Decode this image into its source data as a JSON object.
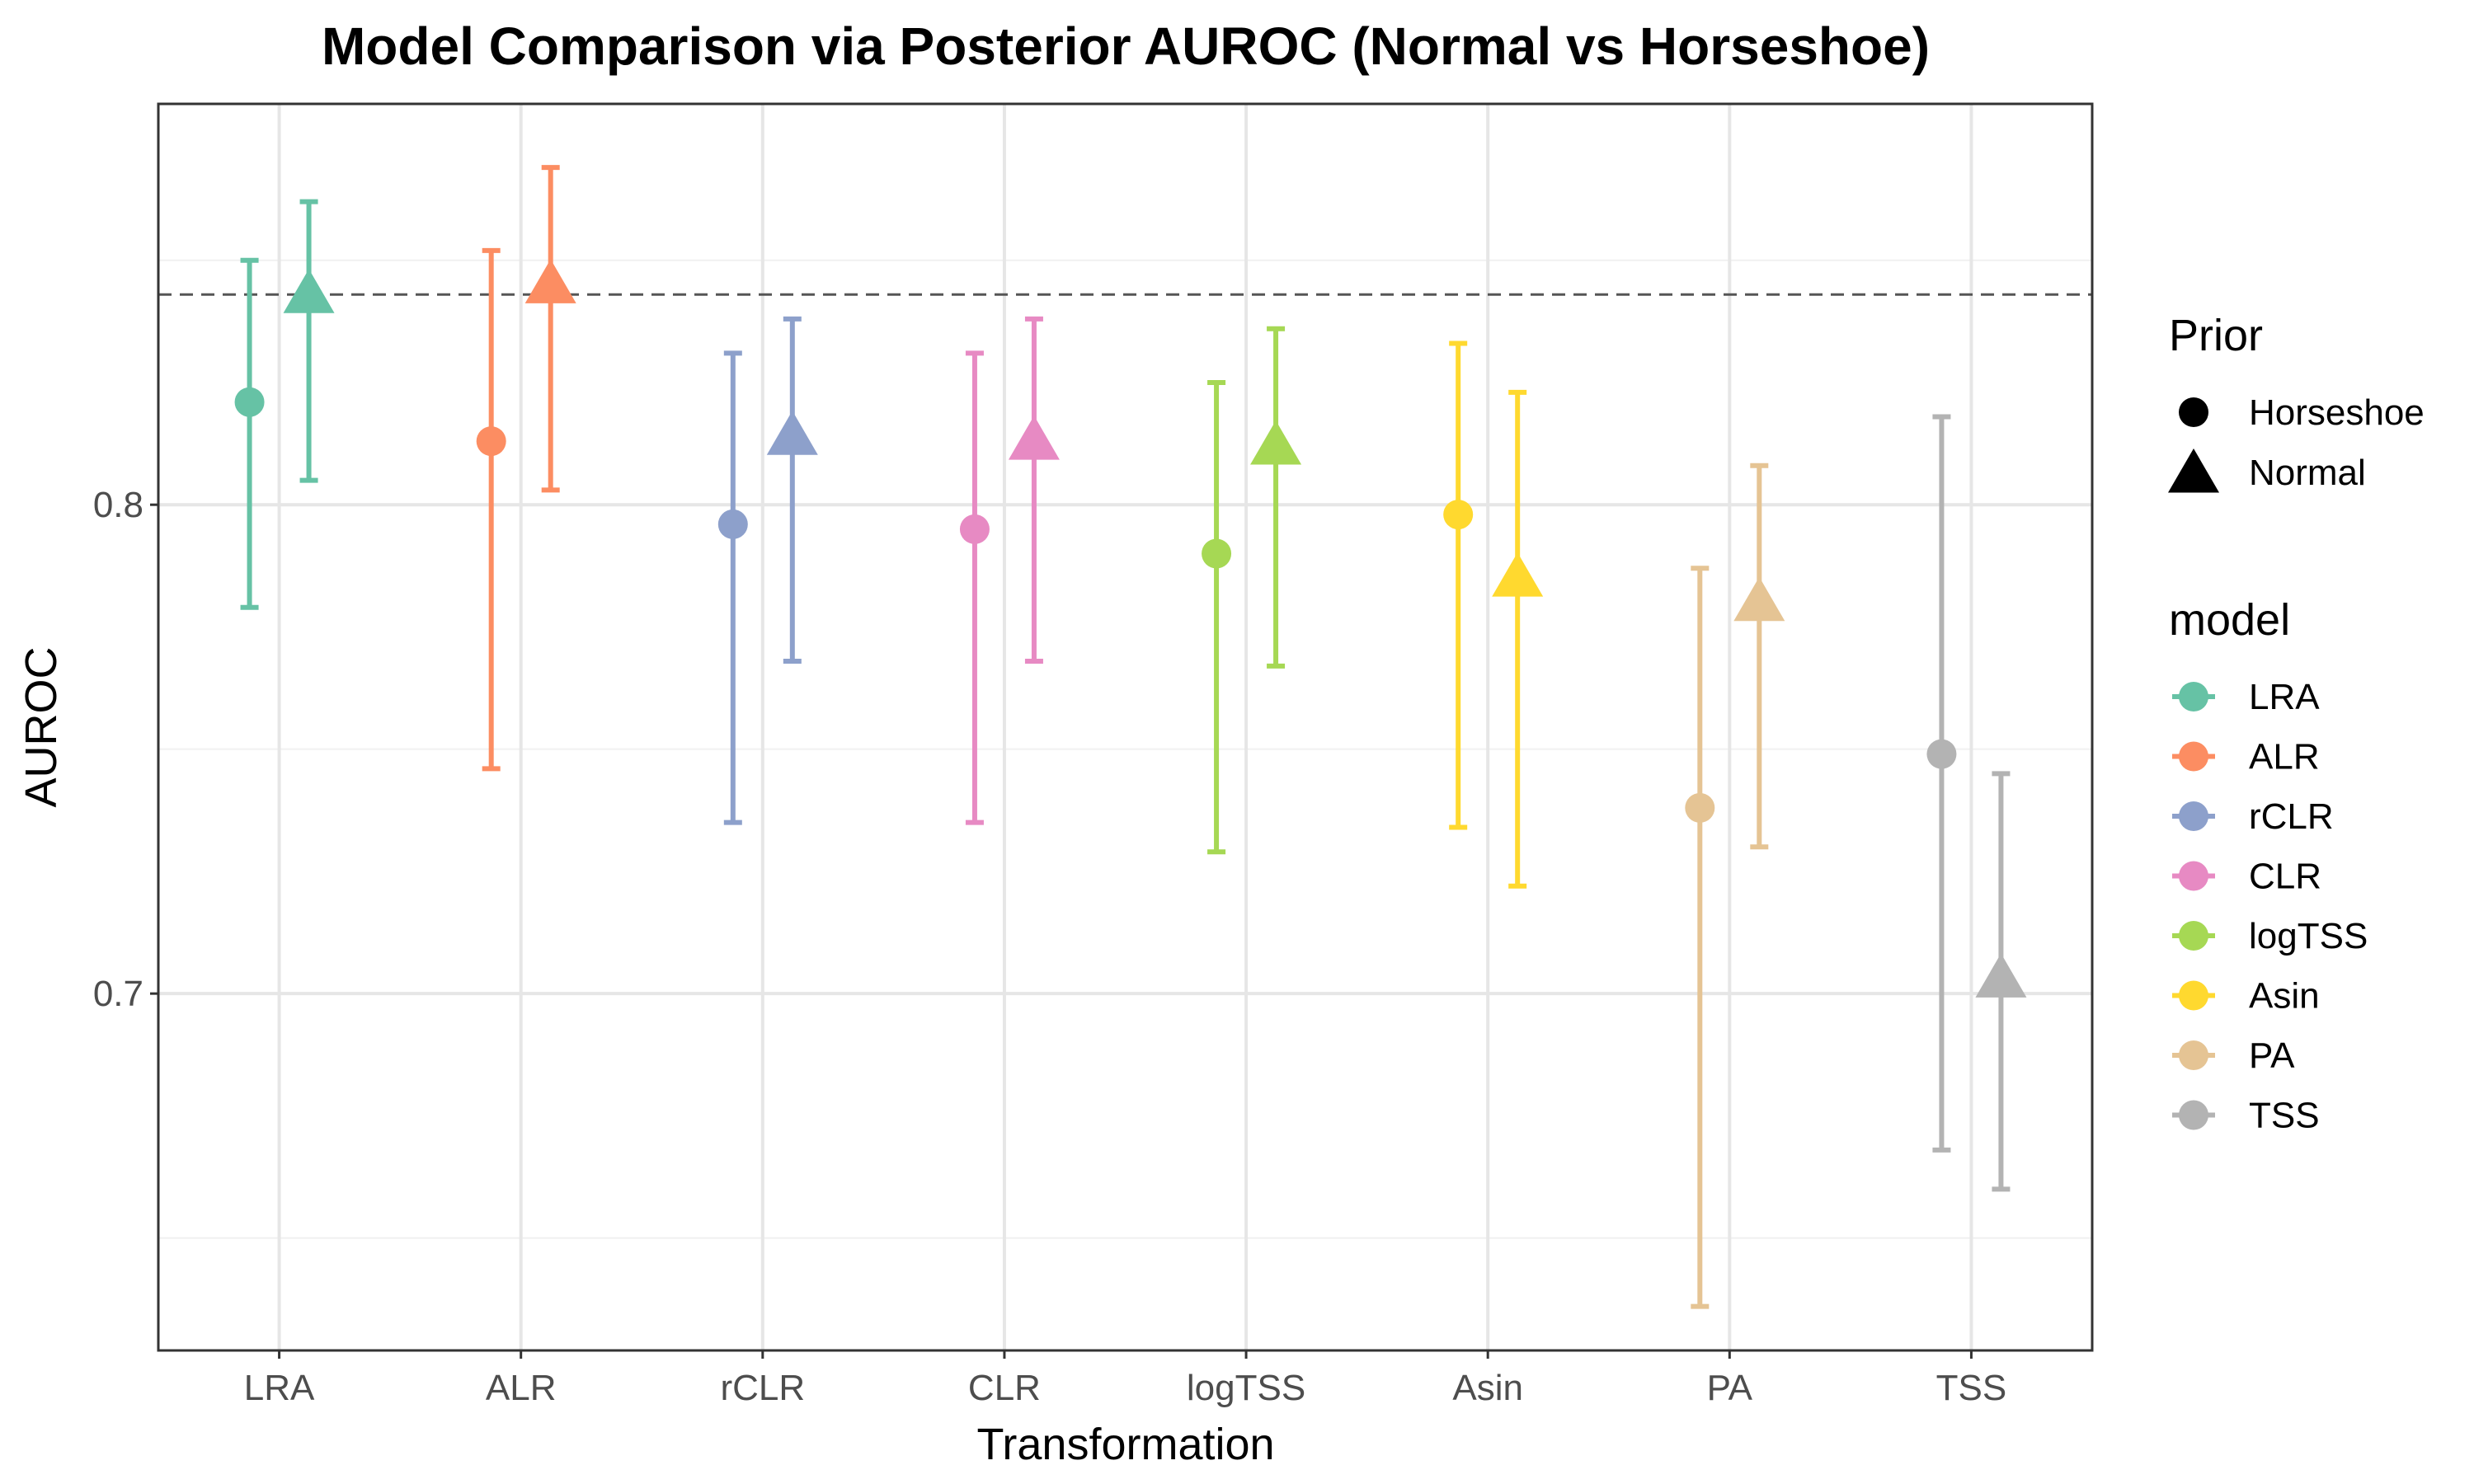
{
  "chart_data": {
    "type": "scatter",
    "subtype": "point-range",
    "title": "Model Comparison via Posterior AUROC (Normal vs Horseshoe)",
    "xlabel": "Transformation",
    "ylabel": "AUROC",
    "categories": [
      "LRA",
      "ALR",
      "rCLR",
      "CLR",
      "logTSS",
      "Asin",
      "PA",
      "TSS"
    ],
    "ylim": [
      0.627,
      0.882
    ],
    "yticks": [
      0.7,
      0.8
    ],
    "ytick_labels": [
      "0.7",
      "0.8"
    ],
    "y_minor_gridlines": [
      0.65,
      0.75,
      0.85
    ],
    "reference_line": {
      "y": 0.843,
      "style": "dashed",
      "color": "#555555"
    },
    "grid": true,
    "theme": "bw",
    "shape_legend": {
      "title": "Prior",
      "entries": [
        {
          "label": "Horseshoe",
          "shape": "circle"
        },
        {
          "label": "Normal",
          "shape": "triangle"
        }
      ]
    },
    "color_legend": {
      "title": "model",
      "entries": [
        {
          "label": "LRA",
          "color": "#66C2A5"
        },
        {
          "label": "ALR",
          "color": "#FC8D62"
        },
        {
          "label": "rCLR",
          "color": "#8DA0CB"
        },
        {
          "label": "CLR",
          "color": "#E78AC3"
        },
        {
          "label": "logTSS",
          "color": "#A6D854"
        },
        {
          "label": "Asin",
          "color": "#FFD92F"
        },
        {
          "label": "PA",
          "color": "#E5C494"
        },
        {
          "label": "TSS",
          "color": "#B3B3B3"
        }
      ]
    },
    "legend_position": "right",
    "series": [
      {
        "name": "Horseshoe",
        "shape": "circle",
        "points": [
          {
            "model": "LRA",
            "y": 0.821,
            "lower": 0.779,
            "upper": 0.85
          },
          {
            "model": "ALR",
            "y": 0.813,
            "lower": 0.746,
            "upper": 0.852
          },
          {
            "model": "rCLR",
            "y": 0.796,
            "lower": 0.735,
            "upper": 0.831
          },
          {
            "model": "CLR",
            "y": 0.795,
            "lower": 0.735,
            "upper": 0.831
          },
          {
            "model": "logTSS",
            "y": 0.79,
            "lower": 0.729,
            "upper": 0.825
          },
          {
            "model": "Asin",
            "y": 0.798,
            "lower": 0.734,
            "upper": 0.833
          },
          {
            "model": "PA",
            "y": 0.738,
            "lower": 0.636,
            "upper": 0.787
          },
          {
            "model": "TSS",
            "y": 0.749,
            "lower": 0.668,
            "upper": 0.818
          }
        ]
      },
      {
        "name": "Normal",
        "shape": "triangle",
        "points": [
          {
            "model": "LRA",
            "y": 0.843,
            "lower": 0.805,
            "upper": 0.862
          },
          {
            "model": "ALR",
            "y": 0.845,
            "lower": 0.803,
            "upper": 0.869
          },
          {
            "model": "rCLR",
            "y": 0.814,
            "lower": 0.768,
            "upper": 0.838
          },
          {
            "model": "CLR",
            "y": 0.813,
            "lower": 0.768,
            "upper": 0.838
          },
          {
            "model": "logTSS",
            "y": 0.812,
            "lower": 0.767,
            "upper": 0.836
          },
          {
            "model": "Asin",
            "y": 0.785,
            "lower": 0.722,
            "upper": 0.823
          },
          {
            "model": "PA",
            "y": 0.78,
            "lower": 0.73,
            "upper": 0.808
          },
          {
            "model": "TSS",
            "y": 0.703,
            "lower": 0.66,
            "upper": 0.745
          }
        ]
      }
    ]
  }
}
